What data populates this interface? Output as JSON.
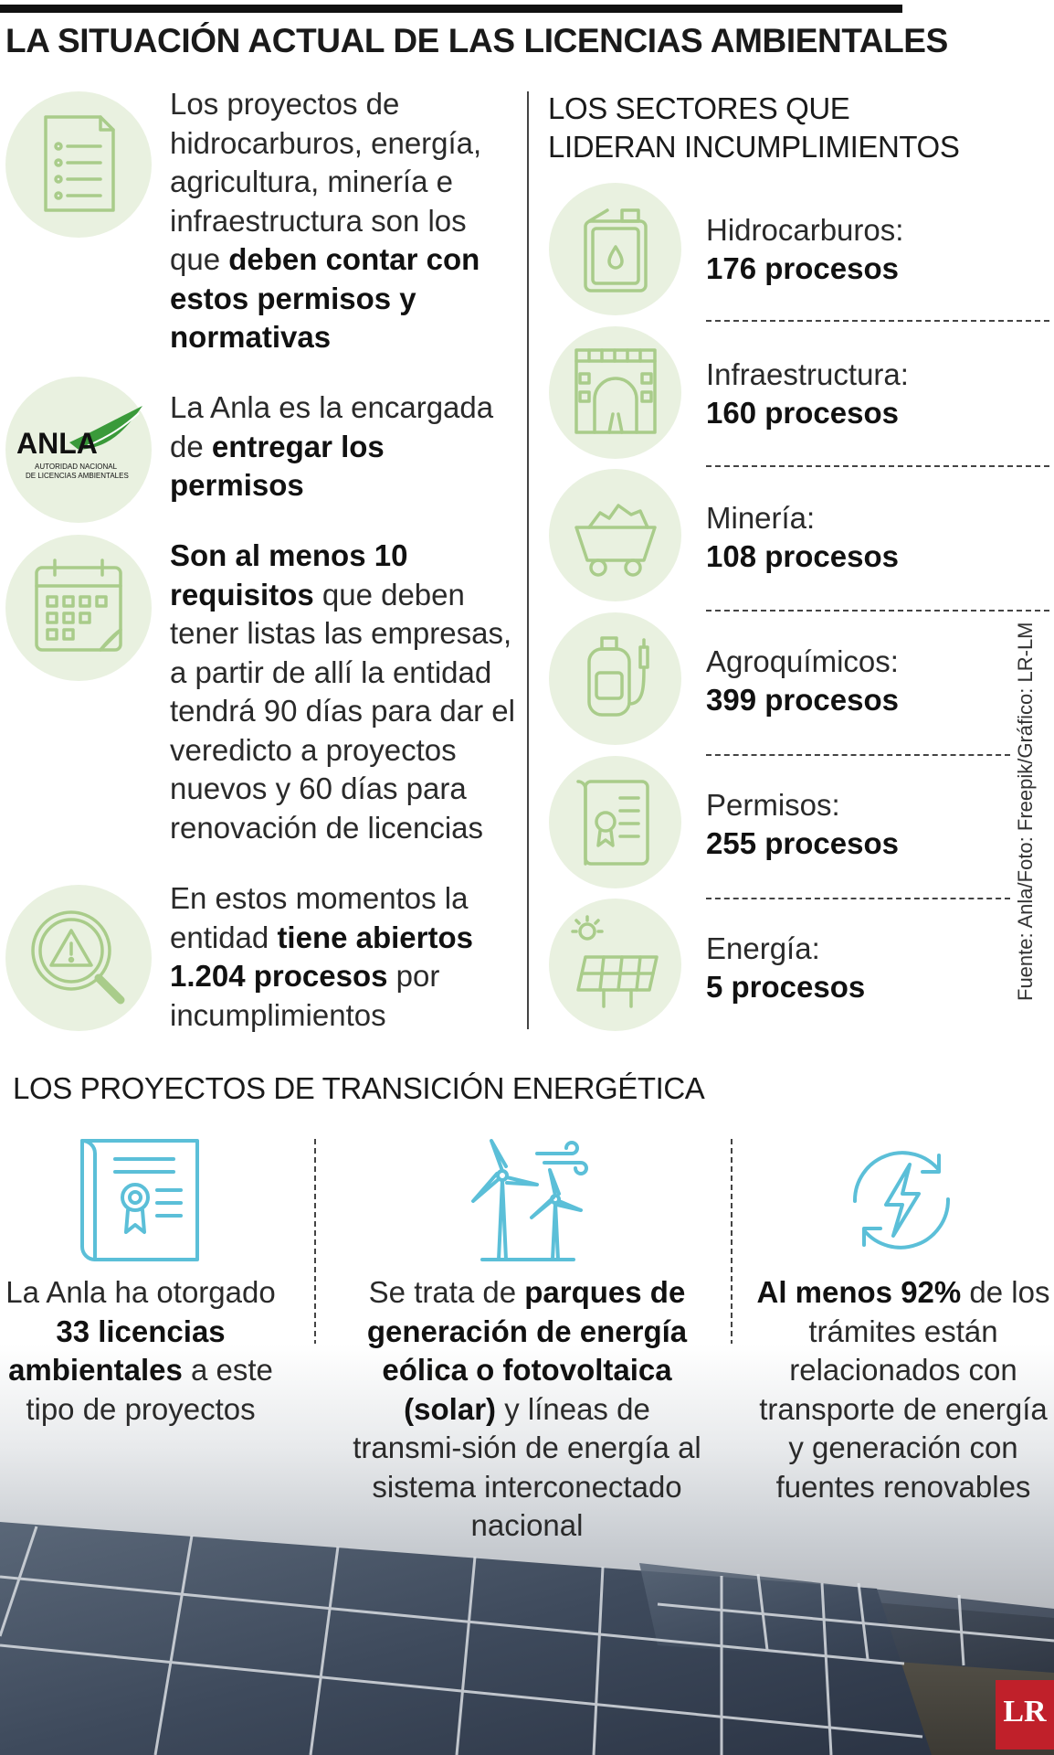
{
  "title": "LA SITUACIÓN ACTUAL DE LAS LICENCIAS AMBIENTALES",
  "left_items": [
    {
      "icon": "document-list-icon",
      "parts": [
        {
          "t": "Los proyectos de hidrocarburos, energía, agricultura, minería e infraestructura son los que "
        },
        {
          "b": "deben contar con estos permisos y normativas"
        }
      ]
    },
    {
      "icon": "anla-logo",
      "parts": [
        {
          "t": "La Anla es la encargada de "
        },
        {
          "b": "entregar los permisos"
        }
      ]
    },
    {
      "icon": "calendar-icon",
      "parts": [
        {
          "b": "Son al menos 10 requisitos"
        },
        {
          "t": " que deben tener listas las empresas, a partir de allí la entidad tendrá 90 días para dar el veredicto a proyectos nuevos y 60 días para renovación de licencias"
        }
      ]
    },
    {
      "icon": "warning-magnifier-icon",
      "parts": [
        {
          "t": "En estos momentos la entidad "
        },
        {
          "b": "tiene abiertos 1.204 procesos"
        },
        {
          "t": " por incumplimientos"
        }
      ]
    }
  ],
  "anla_logo": {
    "word": "ANLA",
    "line1": "AUTORIDAD NACIONAL",
    "line2": "DE LICENCIAS AMBIENTALES"
  },
  "sectors_title": "LOS SECTORES QUE LIDERAN INCUMPLIMIENTOS",
  "sectors": [
    {
      "label": "Hidrocarburos:",
      "value": "176 procesos",
      "icon": "fuel-can-icon"
    },
    {
      "label": "Infraestructura:",
      "value": "160 procesos",
      "icon": "tunnel-road-icon"
    },
    {
      "label": "Minería:",
      "value": "108 procesos",
      "icon": "mine-cart-icon"
    },
    {
      "label": "Agroquímicos:",
      "value": "399 procesos",
      "icon": "sprayer-icon"
    },
    {
      "label": "Permisos:",
      "value": "255 procesos",
      "icon": "certificate-icon"
    },
    {
      "label": "Energía:",
      "value": "5 procesos",
      "icon": "solar-panel-icon"
    }
  ],
  "credit": "Fuente: Anla/Foto: Freepik/Gráfico: LR-LM",
  "transition_title": "LOS PROYECTOS DE TRANSICIÓN ENERGÉTICA",
  "transition_items": [
    {
      "icon": "license-certificate-icon",
      "parts": [
        {
          "t": "La Anla ha otorgado "
        },
        {
          "b": "33 licencias ambientales"
        },
        {
          "t": " a este tipo de proyectos"
        }
      ]
    },
    {
      "icon": "wind-turbine-icon",
      "parts": [
        {
          "t": "Se trata de "
        },
        {
          "b": "parques de generación de energía eólica o fotovoltaica (solar)"
        },
        {
          "t": " y líneas de transmi-sión de energía al sistema interconectado nacional"
        }
      ]
    },
    {
      "icon": "renewable-energy-icon",
      "parts": [
        {
          "b": "Al menos 92%"
        },
        {
          "t": " de los trámites están relacionados con transporte de energía y generación con fuentes renovables"
        }
      ]
    }
  ],
  "brand": "LR",
  "colors": {
    "icon_green": "#a9cc8a",
    "circle_bg": "#e9f1e0",
    "icon_blue": "#5bbfd8",
    "logo_red": "#c0202a"
  }
}
